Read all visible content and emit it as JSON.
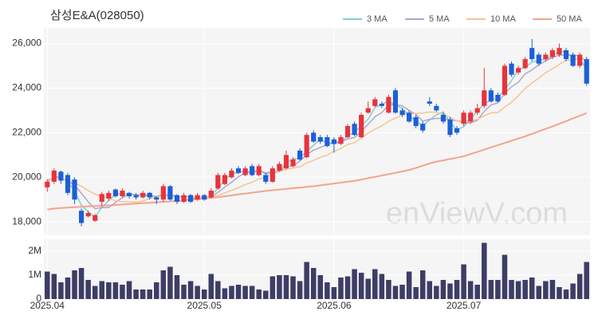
{
  "chart_data": {
    "type": "candlestick",
    "title": "삼성E&A(028050)",
    "watermark": "enViewV.com",
    "categories": [
      "2025.04",
      null,
      null,
      null,
      null,
      null,
      null,
      null,
      null,
      null,
      null,
      null,
      null,
      null,
      null,
      null,
      null,
      null,
      null,
      null,
      null,
      null,
      null,
      "2025.05",
      null,
      null,
      null,
      null,
      null,
      null,
      null,
      null,
      null,
      null,
      null,
      null,
      null,
      null,
      null,
      null,
      null,
      null,
      "2025.06",
      null,
      null,
      null,
      null,
      null,
      null,
      null,
      null,
      null,
      null,
      null,
      null,
      null,
      null,
      null,
      null,
      null,
      null,
      "2025.07",
      null,
      null,
      null,
      null,
      null,
      null,
      null,
      null,
      null,
      null,
      null,
      null,
      null,
      null,
      null,
      null,
      null,
      null
    ],
    "open": [
      19550,
      19800,
      20250,
      20100,
      19900,
      18500,
      18250,
      18050,
      18900,
      19050,
      19450,
      19150,
      19300,
      19200,
      19100,
      19300,
      19100,
      19000,
      19600,
      19200,
      18900,
      19200,
      19000,
      19200,
      19100,
      19500,
      19700,
      20000,
      20400,
      20100,
      20500,
      20100,
      20100,
      19800,
      20300,
      20400,
      20500,
      21200,
      20900,
      22000,
      21800,
      21800,
      21700,
      21500,
      21800,
      22400,
      21800,
      22900,
      23200,
      23300,
      22900,
      23900,
      23000,
      22900,
      22700,
      22400,
      23400,
      23200,
      22800,
      22600,
      22200,
      22400,
      22500,
      22900,
      23200,
      23900,
      23700,
      23700,
      25100,
      24700,
      24900,
      25800,
      25500,
      25300,
      25400,
      25500,
      25700,
      25500,
      25000,
      25300
    ],
    "high": [
      19900,
      20400,
      20300,
      20200,
      20000,
      18600,
      18500,
      18350,
      19350,
      19400,
      19500,
      19500,
      19350,
      19300,
      19400,
      19350,
      19150,
      19700,
      19650,
      19250,
      19300,
      19250,
      19300,
      19250,
      19500,
      20200,
      20200,
      20400,
      20500,
      20500,
      20600,
      20600,
      20200,
      20500,
      20700,
      21200,
      20900,
      21300,
      22000,
      22100,
      21900,
      21900,
      21800,
      21900,
      22400,
      22500,
      22900,
      23400,
      23600,
      23400,
      23700,
      24000,
      23100,
      23000,
      22800,
      22500,
      23600,
      23300,
      22900,
      22700,
      22300,
      23000,
      23000,
      23300,
      24900,
      24000,
      23800,
      25100,
      25200,
      25000,
      25400,
      26200,
      25600,
      25600,
      25800,
      26000,
      25800,
      25600,
      25600,
      25400
    ],
    "low": [
      19350,
      19700,
      19700,
      19200,
      18800,
      17800,
      18200,
      18000,
      18700,
      18950,
      19100,
      19100,
      19050,
      19000,
      19050,
      19000,
      18800,
      18900,
      18950,
      18800,
      18850,
      18850,
      18950,
      18950,
      19050,
      19450,
      19650,
      19950,
      20150,
      20050,
      20050,
      20050,
      19700,
      19750,
      20250,
      20350,
      20450,
      20750,
      20850,
      21550,
      21500,
      21350,
      21100,
      21450,
      21750,
      21850,
      21750,
      22850,
      23150,
      23100,
      22850,
      22850,
      22700,
      22450,
      22200,
      22000,
      23200,
      22950,
      22400,
      21800,
      21900,
      22300,
      22400,
      22800,
      23100,
      23350,
      23350,
      23650,
      24500,
      24600,
      24850,
      25200,
      25000,
      25200,
      25300,
      25400,
      25200,
      24950,
      24900,
      24100
    ],
    "close": [
      19800,
      20300,
      19850,
      19300,
      19000,
      17950,
      18400,
      18300,
      19250,
      19300,
      19150,
      19400,
      19150,
      19100,
      19300,
      19100,
      19000,
      19600,
      19000,
      18900,
      19200,
      18900,
      19200,
      19000,
      19400,
      20100,
      20100,
      20300,
      20200,
      20400,
      20100,
      20500,
      19800,
      20400,
      20600,
      21000,
      20800,
      20800,
      21900,
      21600,
      21600,
      21400,
      21500,
      21800,
      22300,
      21900,
      22800,
      23100,
      23500,
      23200,
      23600,
      22900,
      22800,
      22500,
      22300,
      22100,
      23300,
      23000,
      22500,
      21900,
      22000,
      22900,
      22900,
      23100,
      23900,
      23400,
      23400,
      25000,
      24600,
      24900,
      25300,
      25300,
      25100,
      25500,
      25700,
      25800,
      25300,
      25000,
      25500,
      24200
    ],
    "up_color": "#e8333c",
    "down_color": "#1c5fd8",
    "series": [
      {
        "name": "3 MA",
        "color": "#7fd0cf",
        "values": [
          19800,
          20050,
          19983,
          19817,
          19383,
          18750,
          18450,
          18217,
          18650,
          18950,
          19233,
          19283,
          19233,
          19217,
          19183,
          19167,
          19133,
          19233,
          19200,
          19167,
          19033,
          19000,
          19100,
          19033,
          19200,
          19500,
          19867,
          20167,
          20200,
          20300,
          20233,
          20333,
          20133,
          20233,
          20267,
          20667,
          20800,
          20867,
          21167,
          21433,
          21700,
          21533,
          21500,
          21567,
          21867,
          22000,
          22333,
          22600,
          23133,
          23267,
          23433,
          23233,
          23100,
          22733,
          22533,
          22300,
          22567,
          22800,
          22933,
          22467,
          22133,
          22267,
          22600,
          22967,
          23300,
          23467,
          23567,
          23933,
          24333,
          24833,
          24933,
          25167,
          25233,
          25300,
          25433,
          25667,
          25600,
          25367,
          25267,
          24900
        ]
      },
      {
        "name": "5 MA",
        "color": "#b5a3cc",
        "values": [
          19800,
          20050,
          19983,
          19813,
          19650,
          19280,
          18900,
          18590,
          18640,
          18640,
          18880,
          19080,
          19250,
          19220,
          19220,
          19210,
          19130,
          19220,
          19200,
          19120,
          19140,
          19120,
          19040,
          19040,
          19140,
          19320,
          19560,
          19780,
          20020,
          20220,
          20220,
          20300,
          20200,
          20240,
          20280,
          20480,
          20520,
          20720,
          21020,
          21220,
          21340,
          21460,
          21600,
          21580,
          21720,
          21780,
          22060,
          22380,
          22720,
          22900,
          23240,
          23260,
          23200,
          23000,
          22820,
          22520,
          22600,
          22640,
          22640,
          22560,
          22540,
          22460,
          22440,
          22560,
          22960,
          23240,
          23340,
          23760,
          24060,
          24260,
          24640,
          24820,
          25040,
          25220,
          25380,
          25480,
          25480,
          25460,
          25460,
          25160
        ]
      },
      {
        "name": "10 MA",
        "color": "#f2c692",
        "values": [
          19900,
          19950,
          19950,
          19850,
          19750,
          19600,
          19400,
          19250,
          19150,
          19050,
          18950,
          18900,
          18900,
          18880,
          18930,
          19050,
          19110,
          19180,
          19150,
          19110,
          19110,
          19100,
          19120,
          19110,
          19120,
          19190,
          19300,
          19410,
          19530,
          19680,
          19770,
          19930,
          20000,
          20140,
          20260,
          20350,
          20420,
          20470,
          20640,
          20760,
          20900,
          20990,
          21160,
          21300,
          21470,
          21560,
          21760,
          21990,
          22150,
          22310,
          22510,
          22660,
          22790,
          22860,
          22860,
          22880,
          22930,
          22920,
          22820,
          22690,
          22530,
          22530,
          22540,
          22600,
          22760,
          22890,
          22900,
          23150,
          23360,
          23660,
          23990,
          24230,
          24450,
          24690,
          24870,
          25060,
          25250,
          25250,
          25340,
          25270
        ]
      },
      {
        "name": "50 MA",
        "color": "#f4a38c",
        "values": [
          18550,
          18600,
          18620,
          18640,
          18660,
          18680,
          18700,
          18710,
          18720,
          18740,
          18760,
          18780,
          18800,
          18820,
          18840,
          18860,
          18880,
          18900,
          18920,
          18940,
          18960,
          18990,
          19020,
          19050,
          19080,
          19110,
          19150,
          19190,
          19230,
          19270,
          19310,
          19350,
          19390,
          19420,
          19450,
          19480,
          19510,
          19540,
          19570,
          19600,
          19640,
          19680,
          19720,
          19760,
          19800,
          19840,
          19900,
          19960,
          20020,
          20080,
          20140,
          20200,
          20260,
          20330,
          20420,
          20520,
          20620,
          20700,
          20760,
          20820,
          20880,
          20940,
          21040,
          21140,
          21240,
          21340,
          21440,
          21540,
          21640,
          21740,
          21840,
          21950,
          22060,
          22170,
          22280,
          22400,
          22520,
          22640,
          22760,
          22880
        ]
      }
    ],
    "ylim": [
      17400,
      26700
    ],
    "yticks": [
      {
        "value": 18000,
        "label": "18,000"
      },
      {
        "value": 20000,
        "label": "20,000"
      },
      {
        "value": 22000,
        "label": "22,000"
      },
      {
        "value": 24000,
        "label": "24,000"
      },
      {
        "value": 26000,
        "label": "26,000"
      }
    ],
    "grid": true,
    "legend": "top-right",
    "volume": {
      "color": "#3d3d66",
      "values": [
        1150000,
        1050000,
        700000,
        900000,
        1200000,
        1300000,
        800000,
        550000,
        750000,
        700000,
        700000,
        600000,
        750000,
        400000,
        400000,
        400000,
        700000,
        1200000,
        1350000,
        1000000,
        600000,
        750000,
        550000,
        400000,
        1050000,
        750000,
        450000,
        550000,
        600000,
        550000,
        550000,
        400000,
        350000,
        950000,
        1000000,
        1000000,
        950000,
        750000,
        1550000,
        1300000,
        1000000,
        700000,
        500000,
        900000,
        950000,
        1250000,
        1100000,
        850000,
        1250000,
        1050000,
        800000,
        550000,
        600000,
        1150000,
        500000,
        1200000,
        750000,
        550000,
        800000,
        650000,
        800000,
        1450000,
        750000,
        600000,
        2350000,
        800000,
        800000,
        1850000,
        800000,
        750000,
        800000,
        900000,
        550000,
        750000,
        800000,
        500000,
        400000,
        650000,
        1050000,
        1550000
      ],
      "ylim": [
        0,
        2500000
      ],
      "yticks": [
        0,
        {
          "value": 1000000,
          "label": "1M"
        },
        {
          "value": 2000000,
          "label": "2M"
        }
      ]
    }
  }
}
